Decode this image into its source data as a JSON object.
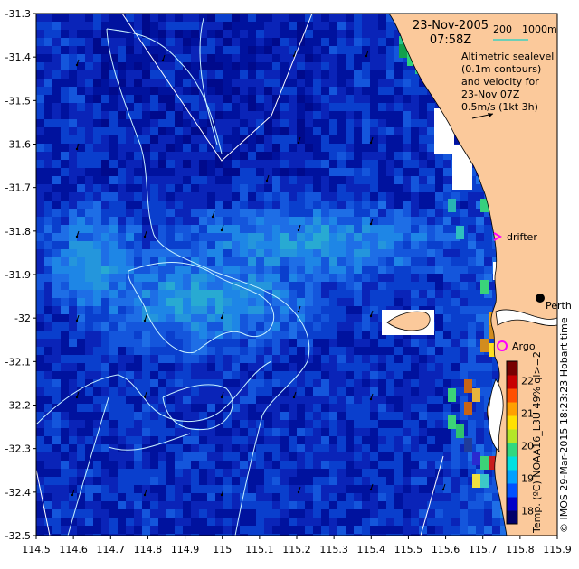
{
  "title": {
    "date": "23-Nov-2005",
    "time": "07:58Z"
  },
  "bathymetry_legend": {
    "label_200": "200",
    "label_1000": "1000m",
    "line_color": "#3fd0c0"
  },
  "altimetry_note": [
    "Altimetric sealevel",
    "(0.1m contours)",
    "and velocity for",
    "23-Nov 07Z",
    "0.5m/s (1kt 3h)"
  ],
  "places": {
    "perth": "Perth",
    "drifter": "drifter",
    "argo": "Argo"
  },
  "credit": "© IMOS 29-Mar-2015 18:23:23 Hobart time",
  "colorbar": {
    "label": "Temp. (ºC) NOAA16_L3U 49% ql>=2",
    "ticks": [
      18,
      19,
      20,
      21,
      22
    ],
    "range": [
      17.6,
      22.6
    ]
  },
  "axes": {
    "x_ticks": [
      "114.5",
      "114.6",
      "114.7",
      "114.8",
      "114.9",
      "115",
      "115.1",
      "115.2",
      "115.3",
      "115.4",
      "115.5",
      "115.6",
      "115.7",
      "115.8",
      "115.9"
    ],
    "y_ticks": [
      "-31.3",
      "-31.4",
      "-31.5",
      "-31.6",
      "-31.7",
      "-31.8",
      "-31.9",
      "-32",
      "-32.1",
      "-32.2",
      "-32.3",
      "-32.4",
      "-32.5"
    ],
    "lon_range": [
      114.5,
      115.9
    ],
    "lat_range": [
      -32.5,
      -31.3
    ]
  },
  "colors": {
    "land": "#fbc99b",
    "ocean_deep": "#000a8c",
    "ocean_mid": "#0a3fcd",
    "ocean_light": "#1e7be6",
    "contour": "#c8f2ff",
    "drifter": "#ff00ff",
    "argo": "#ff00ff"
  }
}
